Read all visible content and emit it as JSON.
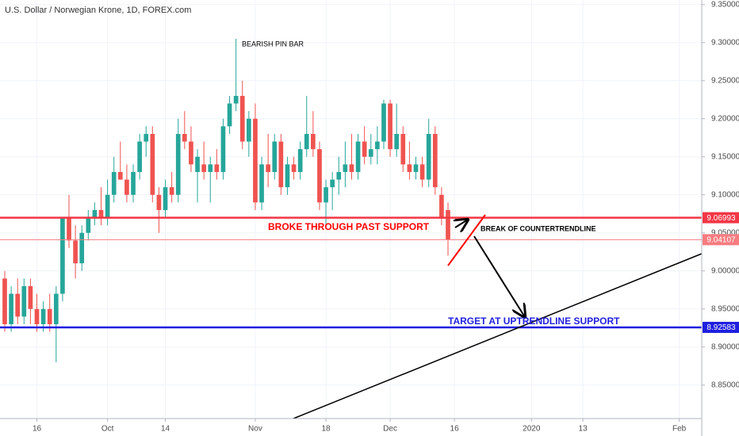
{
  "chart_data": {
    "type": "candlestick",
    "title": "U.S. Dollar / Norwegian Krone, 1D, FOREX.com",
    "open": [
      8.99,
      8.93,
      8.97,
      8.94,
      8.98,
      8.95,
      8.93,
      8.95,
      8.93,
      8.97,
      9.07,
      9.04,
      9.01,
      9.05,
      9.07,
      9.08,
      9.07,
      9.1,
      9.13,
      9.12,
      9.1,
      9.13,
      9.17,
      9.18,
      9.1,
      9.08,
      9.11,
      9.1,
      9.18,
      9.17,
      9.13,
      9.14,
      9.13,
      9.14,
      9.13,
      9.19,
      9.22,
      9.23,
      9.17,
      9.2,
      9.09,
      9.14,
      9.13,
      9.17,
      9.11,
      9.14,
      9.13,
      9.16,
      9.18,
      9.16,
      9.09,
      9.11,
      9.12,
      9.13,
      9.14,
      9.13,
      9.17,
      9.15,
      9.16,
      9.17,
      9.22,
      9.16,
      9.18,
      9.14,
      9.13,
      9.14,
      9.12,
      9.18,
      9.1,
      9.08
    ],
    "high": [
      9.0,
      8.98,
      8.99,
      8.99,
      8.99,
      8.97,
      8.96,
      8.97,
      8.98,
      9.07,
      9.1,
      9.06,
      9.06,
      9.08,
      9.09,
      9.11,
      9.12,
      9.15,
      9.17,
      9.14,
      9.14,
      9.18,
      9.19,
      9.19,
      9.11,
      9.12,
      9.13,
      9.2,
      9.21,
      9.19,
      9.16,
      9.17,
      9.15,
      9.16,
      9.2,
      9.23,
      9.305,
      9.25,
      9.21,
      9.22,
      9.15,
      9.18,
      9.18,
      9.18,
      9.15,
      9.15,
      9.17,
      9.23,
      9.21,
      9.17,
      9.12,
      9.13,
      9.15,
      9.17,
      9.18,
      9.18,
      9.19,
      9.18,
      9.19,
      9.225,
      9.225,
      9.22,
      9.19,
      9.17,
      9.15,
      9.15,
      9.2,
      9.19,
      9.11,
      9.09
    ],
    "low": [
      8.92,
      8.92,
      8.93,
      8.93,
      8.93,
      8.92,
      8.92,
      8.92,
      8.88,
      8.96,
      9.03,
      8.99,
      9.0,
      9.04,
      9.06,
      9.06,
      9.06,
      9.09,
      9.12,
      9.09,
      9.09,
      9.12,
      9.15,
      9.09,
      9.05,
      9.07,
      9.09,
      9.09,
      9.16,
      9.13,
      9.09,
      9.12,
      9.09,
      9.12,
      9.12,
      9.18,
      9.21,
      9.16,
      9.15,
      9.08,
      9.08,
      9.11,
      9.12,
      9.1,
      9.1,
      9.12,
      9.12,
      9.15,
      9.15,
      9.08,
      9.06,
      9.08,
      9.1,
      9.11,
      9.12,
      9.12,
      9.14,
      9.14,
      9.14,
      9.16,
      9.15,
      9.15,
      9.13,
      9.12,
      9.12,
      9.11,
      9.11,
      9.1,
      9.06,
      9.02
    ],
    "close": [
      8.93,
      8.97,
      8.94,
      8.98,
      8.95,
      8.93,
      8.95,
      8.93,
      8.97,
      9.07,
      9.04,
      9.01,
      9.05,
      9.07,
      9.08,
      9.07,
      9.1,
      9.13,
      9.12,
      9.1,
      9.13,
      9.17,
      9.18,
      9.1,
      9.08,
      9.11,
      9.1,
      9.18,
      9.17,
      9.14,
      9.15,
      9.13,
      9.14,
      9.13,
      9.19,
      9.22,
      9.23,
      9.17,
      9.2,
      9.09,
      9.14,
      9.13,
      9.17,
      9.11,
      9.14,
      9.13,
      9.16,
      9.18,
      9.16,
      9.09,
      9.11,
      9.12,
      9.13,
      9.14,
      9.13,
      9.17,
      9.15,
      9.16,
      9.17,
      9.22,
      9.16,
      9.18,
      9.14,
      9.13,
      9.14,
      9.12,
      9.18,
      9.11,
      9.07,
      9.04107
    ],
    "up_color": "#26a69a",
    "down_color": "#ef5350",
    "xlim": [
      -0.74,
      108.5
    ],
    "xticks": [
      {
        "value": 5,
        "label": "16"
      },
      {
        "value": 16,
        "label": "Oct"
      },
      {
        "value": 25,
        "label": "14"
      },
      {
        "value": 39,
        "label": "Nov"
      },
      {
        "value": 50,
        "label": "18"
      },
      {
        "value": 60,
        "label": "Dec"
      },
      {
        "value": 70,
        "label": "16"
      },
      {
        "value": 82,
        "label": "2020"
      },
      {
        "value": 90,
        "label": "13"
      },
      {
        "value": 105,
        "label": "Feb"
      }
    ],
    "ylim": [
      8.806,
      9.356
    ],
    "yticks": [
      {
        "value": 9.35,
        "label": "9.35000"
      },
      {
        "value": 9.3,
        "label": "9.30000"
      },
      {
        "value": 9.25,
        "label": "9.25000"
      },
      {
        "value": 9.2,
        "label": "9.20000"
      },
      {
        "value": 9.15,
        "label": "9.15000"
      },
      {
        "value": 9.1,
        "label": "9.10000"
      },
      {
        "value": 9.05,
        "label": "9.05000"
      },
      {
        "value": 9.0,
        "label": "9.00000"
      },
      {
        "value": 8.95,
        "label": "8.95000"
      },
      {
        "value": 8.9,
        "label": "8.90000"
      },
      {
        "value": 8.85,
        "label": "8.85000"
      }
    ],
    "grid": true,
    "levels": [
      {
        "value": 9.06993,
        "color": "#f23645"
      },
      {
        "value": 9.04107,
        "color": "#f77c80"
      },
      {
        "value": 8.92583,
        "color": "#1f1fdf"
      }
    ],
    "annotations": [
      "BEARISH PIN BAR",
      "BROKE THROUGH PAST SUPPORT",
      "BREAK OF COUNTERTRENDLINE",
      "TARGET AT UPTRENDLINE SUPPORT"
    ]
  }
}
